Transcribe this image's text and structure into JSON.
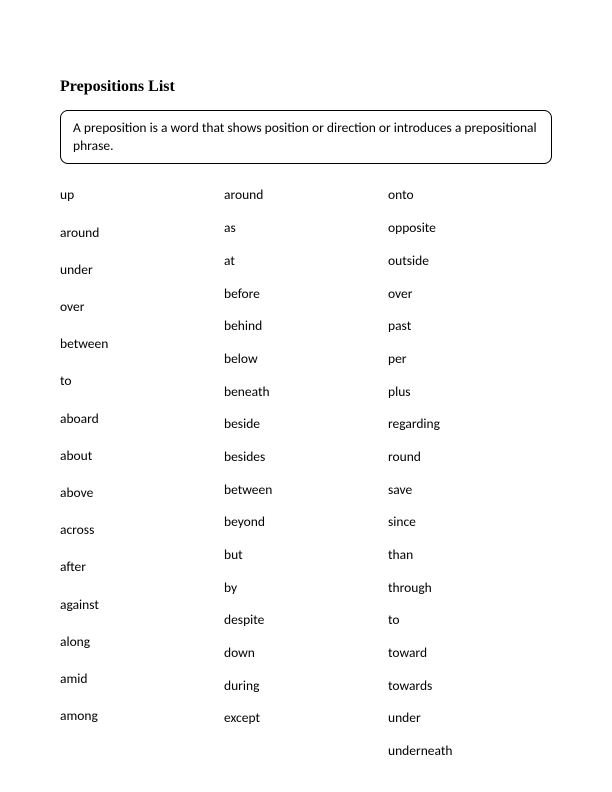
{
  "title": "Prepositions List",
  "definition": "A preposition is a word that shows position or direction or introduces a prepositional phrase.",
  "columns": {
    "col1": [
      "up",
      "around",
      "under",
      "over",
      "between",
      "to",
      "aboard",
      "about",
      "above",
      "across",
      "after",
      "against",
      "along",
      "amid",
      "among"
    ],
    "col2": [
      "around",
      "as",
      "at",
      "before",
      "behind",
      "below",
      "beneath",
      "beside",
      "besides",
      "between",
      "beyond",
      "but",
      "by",
      "despite",
      "down",
      "during",
      "except"
    ],
    "col3": [
      "onto",
      "opposite",
      "outside",
      "over",
      "past",
      "per",
      "plus",
      "regarding",
      "round",
      "save",
      "since",
      "than",
      "through",
      "to",
      "toward",
      "towards",
      "under",
      "underneath"
    ]
  },
  "colors": {
    "background": "#ffffff",
    "text": "#000000",
    "border": "#000000"
  },
  "typography": {
    "title_font": "Times New Roman",
    "title_size": 16,
    "title_weight": "bold",
    "body_font": "Calibri",
    "body_size": 13.5
  }
}
